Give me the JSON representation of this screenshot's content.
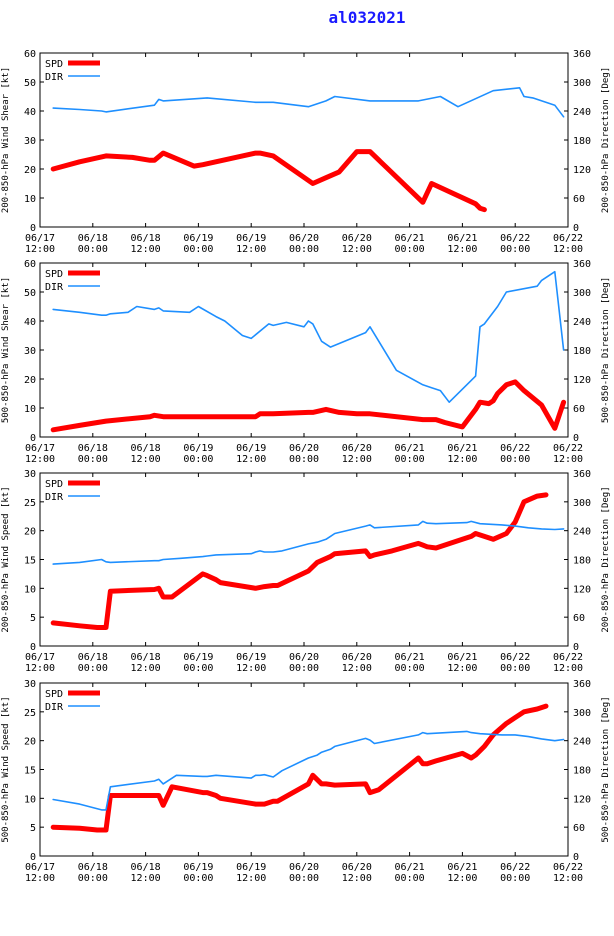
{
  "title": "al032021",
  "x_ticks": [
    [
      "06/17",
      "12:00"
    ],
    [
      "06/18",
      "00:00"
    ],
    [
      "06/18",
      "12:00"
    ],
    [
      "06/19",
      "00:00"
    ],
    [
      "06/19",
      "12:00"
    ],
    [
      "06/20",
      "00:00"
    ],
    [
      "06/20",
      "12:00"
    ],
    [
      "06/21",
      "00:00"
    ],
    [
      "06/21",
      "12:00"
    ],
    [
      "06/22",
      "00:00"
    ],
    [
      "06/22",
      "12:00"
    ]
  ],
  "colors": {
    "spd": "#ff0000",
    "dir": "#1e8fff",
    "axis": "#000000"
  },
  "chart_data": [
    {
      "type": "line",
      "ylabel": "200-850-hPa Wind Shear [kt]",
      "y2label": "200-850-hPa Direction [Deg]",
      "ylim": [
        0,
        60
      ],
      "yticks": [
        0,
        10,
        20,
        30,
        40,
        50,
        60
      ],
      "y2lim": [
        0,
        360
      ],
      "y2ticks": [
        0,
        60,
        120,
        180,
        240,
        300,
        360
      ],
      "xlim": [
        0,
        120
      ],
      "legend": [
        "SPD",
        "DIR"
      ],
      "series": [
        {
          "name": "SPD",
          "axis": "left",
          "x": [
            3,
            9,
            15,
            21,
            25,
            26,
            28,
            35,
            37,
            49,
            50,
            53,
            62,
            65,
            68,
            72,
            74,
            75,
            87,
            89,
            99,
            100,
            101
          ],
          "values": [
            20,
            22.5,
            24.5,
            24,
            23,
            23,
            25.5,
            21,
            21.5,
            25.5,
            25.5,
            24.5,
            15,
            17,
            19,
            26,
            26,
            26,
            8.5,
            15,
            8,
            6.5,
            6
          ]
        },
        {
          "name": "DIR",
          "axis": "left",
          "x": [
            3,
            9,
            14,
            15,
            26,
            27,
            28,
            38,
            49,
            50,
            53,
            61,
            65,
            67,
            75,
            80,
            86,
            91,
            95,
            103,
            109,
            110,
            112,
            117,
            119
          ],
          "values": [
            41,
            40.5,
            40,
            39.7,
            42,
            44,
            43.5,
            44.5,
            43,
            43,
            43,
            41.5,
            43.5,
            45,
            43.5,
            43.5,
            43.5,
            45,
            41.5,
            47,
            48,
            45,
            44.5,
            42,
            38
          ]
        }
      ]
    },
    {
      "type": "line",
      "ylabel": "500-850-hPa Wind Shear [kt]",
      "y2label": "500-850-hPa Direction [Deg]",
      "ylim": [
        0,
        60
      ],
      "yticks": [
        0,
        10,
        20,
        30,
        40,
        50,
        60
      ],
      "y2lim": [
        0,
        360
      ],
      "y2ticks": [
        0,
        60,
        120,
        180,
        240,
        300,
        360
      ],
      "xlim": [
        0,
        120
      ],
      "legend": [
        "SPD",
        "DIR"
      ],
      "series": [
        {
          "name": "SPD",
          "axis": "left",
          "x": [
            3,
            9,
            15,
            25,
            26,
            28,
            37,
            39,
            49,
            50,
            53,
            61,
            62,
            65,
            68,
            72,
            74,
            75,
            87,
            88,
            90,
            92,
            96,
            99,
            100,
            102,
            103,
            104,
            106,
            108,
            110,
            114,
            117,
            119
          ],
          "values": [
            2.5,
            4,
            5.5,
            7,
            7.5,
            7,
            7,
            7,
            7,
            8,
            8,
            8.5,
            8.5,
            9.5,
            8.5,
            8,
            8,
            8,
            6,
            6,
            6,
            5,
            3.5,
            9.5,
            12,
            11.5,
            12.5,
            15,
            18,
            19,
            16,
            11,
            3,
            12
          ]
        },
        {
          "name": "DIR",
          "axis": "left",
          "x": [
            3,
            9,
            14,
            15,
            16,
            20,
            22,
            26,
            27,
            28,
            34,
            36,
            40,
            42,
            46,
            48,
            52,
            53,
            56,
            60,
            61,
            62,
            64,
            66,
            74,
            75,
            81,
            87,
            89,
            91,
            93,
            99,
            100,
            101,
            104,
            106,
            113,
            114,
            117,
            119
          ],
          "values": [
            44,
            43,
            42,
            42,
            42.5,
            43,
            45,
            44,
            44.5,
            43.5,
            43,
            45,
            41.5,
            40,
            35,
            34,
            39,
            38.5,
            39.5,
            38,
            40,
            39,
            33,
            31,
            36,
            38,
            23,
            18,
            17,
            16,
            12,
            21,
            38,
            39,
            45,
            50,
            52,
            54,
            57,
            30
          ]
        }
      ]
    },
    {
      "type": "line",
      "ylabel": "200-850-hPa Wind Speed [kt]",
      "y2label": "200-850-hPa Direction [Deg]",
      "ylim": [
        0,
        30
      ],
      "yticks": [
        0,
        5,
        10,
        15,
        20,
        25,
        30
      ],
      "y2lim": [
        0,
        360
      ],
      "y2ticks": [
        0,
        60,
        120,
        180,
        240,
        300,
        360
      ],
      "xlim": [
        0,
        120
      ],
      "legend": [
        "SPD",
        "DIR"
      ],
      "series": [
        {
          "name": "SPD",
          "axis": "left",
          "x": [
            3,
            9,
            13,
            15,
            16,
            26,
            27,
            28,
            30,
            37,
            38,
            40,
            41,
            49,
            51,
            53,
            54,
            61,
            63,
            66,
            67,
            74,
            75,
            76,
            80,
            86,
            87,
            88,
            90,
            96,
            98,
            99,
            101,
            103,
            106,
            108,
            110,
            113,
            115
          ],
          "values": [
            4,
            3.5,
            3.2,
            3.2,
            9.5,
            9.8,
            10,
            8.5,
            8.5,
            12.5,
            12.2,
            11.5,
            11,
            10,
            10.3,
            10.5,
            10.5,
            13,
            14.5,
            15.5,
            16,
            16.5,
            15.5,
            15.8,
            16.5,
            17.8,
            17.5,
            17.2,
            17,
            18.5,
            19,
            19.5,
            19,
            18.5,
            19.5,
            21.5,
            25,
            26,
            26.2
          ]
        },
        {
          "name": "DIR",
          "axis": "left",
          "x": [
            3,
            9,
            14,
            15,
            16,
            26,
            27,
            28,
            32,
            37,
            38,
            40,
            48,
            49,
            50,
            51,
            53,
            55,
            61,
            63,
            65,
            66,
            67,
            74,
            75,
            76,
            86,
            87,
            88,
            90,
            97,
            98,
            100,
            105,
            108,
            111,
            114,
            117,
            119
          ],
          "values": [
            14.2,
            14.5,
            15,
            14.6,
            14.5,
            14.8,
            14.8,
            15,
            15.2,
            15.5,
            15.6,
            15.8,
            16,
            16.3,
            16.5,
            16.3,
            16.3,
            16.5,
            17.7,
            18,
            18.5,
            19,
            19.5,
            20.8,
            21,
            20.5,
            21,
            21.6,
            21.3,
            21.2,
            21.4,
            21.6,
            21.2,
            21,
            20.8,
            20.5,
            20.3,
            20.2,
            20.3
          ]
        }
      ]
    },
    {
      "type": "line",
      "ylabel": "500-850-hPa Wind Speed [kt]",
      "y2label": "500-850-hPa Direction [Deg]",
      "ylim": [
        0,
        30
      ],
      "yticks": [
        0,
        5,
        10,
        15,
        20,
        25,
        30
      ],
      "y2lim": [
        0,
        360
      ],
      "y2ticks": [
        0,
        60,
        120,
        180,
        240,
        300,
        360
      ],
      "xlim": [
        0,
        120
      ],
      "legend": [
        "SPD",
        "DIR"
      ],
      "series": [
        {
          "name": "SPD",
          "axis": "left",
          "x": [
            3,
            9,
            13,
            15,
            16,
            26,
            27,
            28,
            30,
            37,
            38,
            40,
            41,
            49,
            51,
            53,
            54,
            61,
            62,
            64,
            65,
            67,
            74,
            75,
            77,
            86,
            87,
            88,
            90,
            96,
            98,
            99,
            101,
            103,
            106,
            108,
            110,
            113,
            115
          ],
          "values": [
            5,
            4.8,
            4.5,
            4.5,
            10.5,
            10.5,
            10.5,
            8.8,
            12,
            11,
            11,
            10.5,
            10,
            9,
            9,
            9.5,
            9.5,
            12.5,
            14,
            12.5,
            12.5,
            12.3,
            12.5,
            11,
            11.5,
            17,
            16,
            16,
            16.5,
            17.8,
            17,
            17.5,
            19,
            21,
            23,
            24,
            25,
            25.5,
            26
          ]
        },
        {
          "name": "DIR",
          "axis": "left",
          "x": [
            3,
            9,
            14,
            15,
            16,
            26,
            27,
            28,
            31,
            37,
            38,
            40,
            48,
            49,
            50,
            51,
            53,
            55,
            61,
            63,
            64,
            66,
            67,
            74,
            75,
            76,
            86,
            87,
            88,
            90,
            97,
            98,
            100,
            105,
            108,
            111,
            114,
            117,
            119
          ],
          "values": [
            9.8,
            9,
            8,
            8,
            12,
            13,
            13.3,
            12.5,
            14,
            13.8,
            13.8,
            14,
            13.5,
            14,
            14,
            14.1,
            13.7,
            14.8,
            17,
            17.5,
            18,
            18.5,
            19,
            20.4,
            20.1,
            19.5,
            21,
            21.4,
            21.2,
            21.3,
            21.6,
            21.4,
            21.2,
            21,
            21,
            20.7,
            20.3,
            20,
            20.2
          ]
        }
      ]
    }
  ]
}
